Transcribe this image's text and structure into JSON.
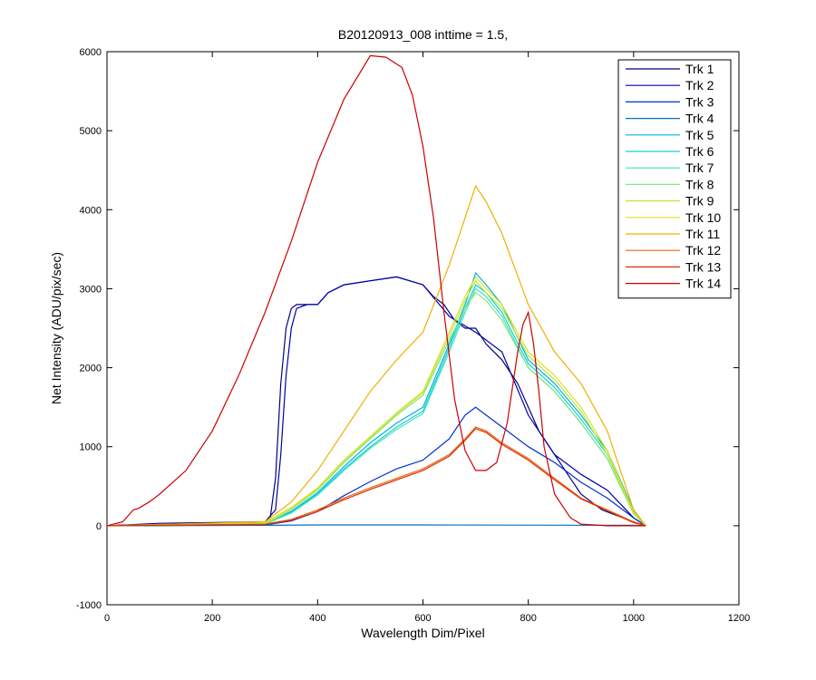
{
  "chart_data": {
    "type": "line",
    "title": "B20120913_008 inttime = 1.5,",
    "xlabel": "Wavelength Dim/Pixel",
    "ylabel": "Net Intensity (ADU/pix/sec)",
    "xlim": [
      0,
      1200
    ],
    "ylim": [
      -1000,
      6000
    ],
    "xticks": [
      0,
      200,
      400,
      600,
      800,
      1000,
      1200
    ],
    "yticks": [
      -1000,
      0,
      1000,
      2000,
      3000,
      4000,
      5000,
      6000
    ],
    "grid": false,
    "legend_position": "top-right",
    "series": [
      {
        "name": "Trk 1",
        "color": "#000080",
        "x": [
          0,
          20,
          60,
          100,
          150,
          200,
          250,
          280,
          300,
          310,
          320,
          330,
          340,
          350,
          360,
          380,
          400,
          420,
          450,
          500,
          550,
          600,
          620,
          640,
          660,
          680,
          700,
          720,
          750,
          780,
          800,
          820,
          850,
          880,
          900,
          920,
          940,
          960,
          980,
          1000,
          1023
        ],
        "y": [
          0,
          5,
          10,
          15,
          15,
          20,
          25,
          30,
          40,
          100,
          600,
          1800,
          2500,
          2750,
          2800,
          2800,
          2800,
          2950,
          3050,
          3100,
          3150,
          3050,
          2900,
          2800,
          2600,
          2500,
          2500,
          2300,
          2100,
          1800,
          1500,
          1200,
          900,
          600,
          400,
          300,
          200,
          150,
          100,
          50,
          0
        ]
      },
      {
        "name": "Trk 2",
        "color": "#0000a8",
        "x": [
          0,
          100,
          200,
          300,
          320,
          330,
          340,
          350,
          360,
          380,
          400,
          420,
          450,
          500,
          550,
          600,
          650,
          700,
          750,
          800,
          850,
          900,
          950,
          1000,
          1023
        ],
        "y": [
          0,
          30,
          40,
          50,
          200,
          900,
          1900,
          2500,
          2750,
          2800,
          2800,
          2950,
          3050,
          3100,
          3150,
          3050,
          2650,
          2450,
          2200,
          1400,
          900,
          650,
          450,
          100,
          0
        ]
      },
      {
        "name": "Trk 3",
        "color": "#0030d0",
        "x": [
          0,
          300,
          350,
          400,
          450,
          500,
          550,
          600,
          650,
          680,
          700,
          720,
          750,
          800,
          850,
          900,
          950,
          1000,
          1023
        ],
        "y": [
          0,
          10,
          60,
          180,
          380,
          560,
          720,
          830,
          1100,
          1400,
          1500,
          1400,
          1250,
          1000,
          800,
          550,
          350,
          100,
          0
        ]
      },
      {
        "name": "Trk 4",
        "color": "#0070c0",
        "x": [
          0,
          300,
          400,
          600,
          800,
          1000,
          1023
        ],
        "y": [
          0,
          5,
          10,
          10,
          8,
          5,
          0
        ]
      },
      {
        "name": "Trk 5",
        "color": "#00b0e0",
        "x": [
          0,
          300,
          350,
          400,
          450,
          500,
          550,
          600,
          650,
          680,
          700,
          720,
          750,
          800,
          850,
          900,
          950,
          1000,
          1023
        ],
        "y": [
          0,
          30,
          180,
          420,
          750,
          1050,
          1300,
          1500,
          2300,
          2800,
          3200,
          3050,
          2800,
          2100,
          1800,
          1400,
          950,
          200,
          0
        ]
      },
      {
        "name": "Trk 6",
        "color": "#10d0d0",
        "x": [
          0,
          300,
          350,
          400,
          450,
          500,
          550,
          600,
          650,
          680,
          700,
          720,
          750,
          800,
          850,
          900,
          950,
          1000,
          1023
        ],
        "y": [
          0,
          25,
          170,
          400,
          720,
          1000,
          1250,
          1450,
          2250,
          2750,
          3050,
          2950,
          2700,
          2050,
          1750,
          1350,
          900,
          180,
          0
        ]
      },
      {
        "name": "Trk 7",
        "color": "#40e0c0",
        "x": [
          0,
          300,
          350,
          400,
          450,
          500,
          550,
          600,
          650,
          680,
          700,
          720,
          750,
          800,
          850,
          900,
          950,
          1000,
          1023
        ],
        "y": [
          0,
          20,
          160,
          390,
          700,
          980,
          1220,
          1420,
          2200,
          2700,
          3000,
          2900,
          2650,
          2000,
          1700,
          1300,
          850,
          160,
          0
        ]
      },
      {
        "name": "Trk 8",
        "color": "#80e880",
        "x": [
          0,
          300,
          350,
          400,
          450,
          500,
          550,
          600,
          650,
          680,
          700,
          720,
          750,
          800,
          850,
          900,
          950,
          1000,
          1023
        ],
        "y": [
          0,
          20,
          200,
          450,
          800,
          1100,
          1400,
          1650,
          2350,
          2750,
          2950,
          2850,
          2600,
          2000,
          1700,
          1300,
          850,
          150,
          0
        ]
      },
      {
        "name": "Trk 9",
        "color": "#b8e840",
        "x": [
          0,
          300,
          350,
          400,
          450,
          500,
          550,
          600,
          650,
          680,
          700,
          720,
          750,
          800,
          850,
          900,
          950,
          1000,
          1023
        ],
        "y": [
          0,
          30,
          220,
          470,
          820,
          1120,
          1420,
          1680,
          2400,
          2850,
          3100,
          2950,
          2750,
          2150,
          1850,
          1450,
          900,
          160,
          0
        ]
      },
      {
        "name": "Trk 10",
        "color": "#e0e020",
        "x": [
          0,
          300,
          350,
          400,
          450,
          500,
          550,
          600,
          650,
          680,
          700,
          720,
          750,
          800,
          850,
          900,
          950,
          1000,
          1023
        ],
        "y": [
          0,
          40,
          230,
          480,
          830,
          1130,
          1430,
          1700,
          2450,
          2900,
          3150,
          3000,
          2800,
          2200,
          1900,
          1500,
          950,
          170,
          0
        ]
      },
      {
        "name": "Trk 11",
        "color": "#f0b000",
        "x": [
          0,
          300,
          350,
          400,
          450,
          500,
          550,
          600,
          650,
          680,
          700,
          720,
          750,
          800,
          850,
          900,
          950,
          1000,
          1023
        ],
        "y": [
          0,
          50,
          300,
          700,
          1200,
          1700,
          2100,
          2450,
          3300,
          3900,
          4300,
          4100,
          3700,
          2800,
          2200,
          1800,
          1200,
          200,
          0
        ]
      },
      {
        "name": "Trk 12",
        "color": "#f06010",
        "x": [
          0,
          300,
          350,
          400,
          450,
          500,
          550,
          600,
          650,
          680,
          700,
          720,
          750,
          800,
          850,
          900,
          950,
          1000,
          1023
        ],
        "y": [
          0,
          20,
          80,
          200,
          350,
          480,
          600,
          720,
          900,
          1100,
          1250,
          1200,
          1050,
          850,
          600,
          350,
          200,
          50,
          0
        ]
      },
      {
        "name": "Trk 13",
        "color": "#d83000",
        "x": [
          0,
          300,
          350,
          400,
          450,
          500,
          550,
          600,
          650,
          680,
          700,
          720,
          750,
          800,
          850,
          900,
          950,
          1000,
          1023
        ],
        "y": [
          0,
          15,
          70,
          180,
          330,
          460,
          580,
          700,
          880,
          1080,
          1230,
          1180,
          1030,
          830,
          580,
          340,
          190,
          40,
          0
        ]
      },
      {
        "name": "Trk 14",
        "color": "#cc0000",
        "x": [
          0,
          30,
          50,
          60,
          80,
          100,
          150,
          200,
          250,
          300,
          350,
          400,
          450,
          500,
          530,
          560,
          580,
          600,
          620,
          640,
          660,
          680,
          700,
          720,
          740,
          760,
          780,
          790,
          800,
          810,
          820,
          830,
          850,
          880,
          900,
          950,
          1023
        ],
        "y": [
          0,
          50,
          200,
          220,
          300,
          400,
          700,
          1200,
          1900,
          2700,
          3600,
          4600,
          5400,
          5950,
          5930,
          5800,
          5450,
          4800,
          3900,
          2700,
          1600,
          950,
          700,
          700,
          800,
          1300,
          2200,
          2550,
          2700,
          2300,
          1700,
          1000,
          400,
          100,
          20,
          0,
          0
        ]
      }
    ]
  }
}
